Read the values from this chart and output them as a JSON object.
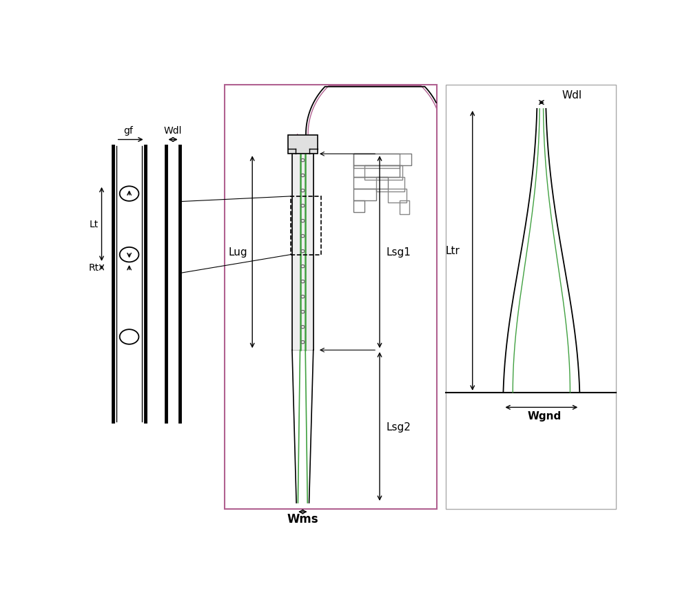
{
  "bg_color": "#ffffff",
  "line_color": "#000000",
  "purple_color": "#b06090",
  "green_color": "#40a040",
  "gray_color": "#888888",
  "fig_width": 10.0,
  "fig_height": 8.62,
  "labels": {
    "gf": "gf",
    "Wdl_left": "Wdl",
    "Wdl_right": "Wdl",
    "Lt": "Lt",
    "Rt": "Rt",
    "Lsg1": "Lsg1",
    "Lsg2": "Lsg2",
    "Lug": "Lug",
    "Wms": "Wms",
    "Ltr": "Ltr",
    "Wgnd": "Wgnd"
  }
}
